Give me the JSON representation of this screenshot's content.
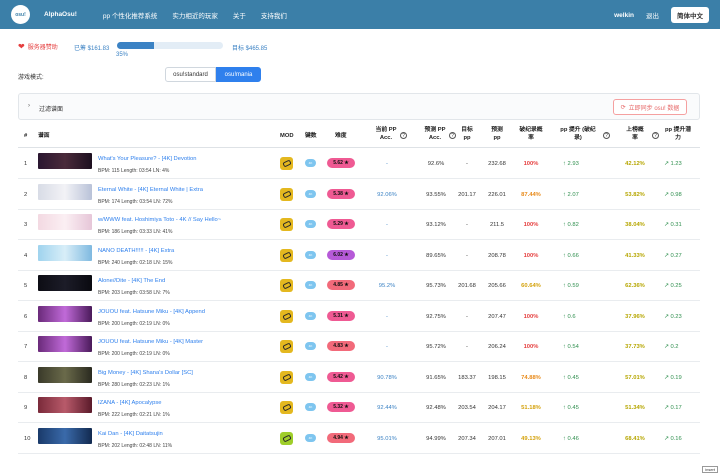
{
  "header": {
    "logo_text": "osu!",
    "brand": "AlphaOsu!",
    "nav": [
      "pp 个性化推荐系统",
      "实力相近的玩家",
      "关于",
      "支持我们"
    ],
    "username": "welkin",
    "logout": "退出",
    "language_button": "简体中文"
  },
  "support": {
    "label": "服务器赞助",
    "raised": "已筹 $161.83",
    "progress_percent": 35,
    "progress_text": "35%",
    "goal": "目标 $465.85"
  },
  "mode": {
    "label": "游戏模式:",
    "options": [
      "osu!standard",
      "osu!mania"
    ],
    "selected": "osu!mania"
  },
  "filter": {
    "label": "过滤谱面",
    "sync_button": "立即同步 osu! 数据"
  },
  "table": {
    "headers": {
      "index": "#",
      "beatmap": "谱面",
      "mod": "MOD",
      "keys": "键数",
      "difficulty": "难度",
      "current_pp_acc_1": "当前 PP",
      "current_pp_acc_2": "Acc.",
      "predicted_pp_acc_1": "预测 PP",
      "predicted_pp_acc_2": "Acc.",
      "target_pp_1": "目标",
      "target_pp_2": "pp",
      "predicted_pp_1": "预测",
      "predicted_pp_2": "pp",
      "break_rate_1": "破纪录概",
      "break_rate_2": "率",
      "pp_gain_1": "pp 提升 (破纪",
      "pp_gain_2": "录)",
      "rank_prob_1": "上榜概",
      "rank_prob_2": "率",
      "potential_1": "pp 提升潜",
      "potential_2": "力"
    },
    "rows": [
      {
        "index": "1",
        "title": "What's Your Pleasure? - [4K] Devotion",
        "meta": "BPM: 115   Length: 03:54   LN: 4%",
        "mod": "HD",
        "stars": "5.62 ★",
        "star_color": "#ef5a93",
        "current_acc": "-",
        "predicted_acc": "92.6%",
        "target_pp": "-",
        "predicted_pp": "232.68",
        "break_rate": "100%",
        "rate_color": "#e53e3e",
        "pp_gain": "↑ 2.93",
        "rank_prob": "42.12%",
        "prob_color": "#b6a600",
        "potential": "↗ 1.23",
        "thumb": "linear-gradient(90deg,#2a1630,#4a2a3a,#1d1020)"
      },
      {
        "index": "2",
        "title": "Eternal White - [4K] Eternal White | Extra",
        "meta": "BPM: 174   Length: 03:54   LN: 72%",
        "mod": "HD",
        "stars": "5.38 ★",
        "star_color": "#ef5a93",
        "current_acc": "92.06%",
        "predicted_acc": "93.55%",
        "target_pp": "201.17",
        "predicted_pp": "226.01",
        "break_rate": "87.44%",
        "rate_color": "#e88a1a",
        "pp_gain": "↑ 2.07",
        "rank_prob": "53.82%",
        "prob_color": "#b6a600",
        "potential": "↗ 0.98",
        "thumb": "linear-gradient(90deg,#d8dce6,#f2f2f6,#b9c2d8)"
      },
      {
        "index": "3",
        "title": "w/WWW feat. Hoshimiya Toto - 4K // Say Hello~",
        "meta": "BPM: 186   Length: 03:33   LN: 41%",
        "mod": "HD",
        "stars": "5.29 ★",
        "star_color": "#ef5a93",
        "current_acc": "-",
        "predicted_acc": "93.12%",
        "target_pp": "-",
        "predicted_pp": "211.5",
        "break_rate": "100%",
        "rate_color": "#e53e3e",
        "pp_gain": "↑ 0.82",
        "rank_prob": "38.04%",
        "prob_color": "#b6a600",
        "potential": "↗ 0.31",
        "thumb": "linear-gradient(90deg,#f3d9e2,#fbeff3,#e6c6d8)"
      },
      {
        "index": "4",
        "title": "NANO DEATH!!!!! - [4K] Extra",
        "meta": "BPM: 240   Length: 02:18   LN: 15%",
        "mod": "HD",
        "stars": "6.02 ★",
        "star_color": "#b65ad8",
        "current_acc": "-",
        "predicted_acc": "89.65%",
        "target_pp": "-",
        "predicted_pp": "208.78",
        "break_rate": "100%",
        "rate_color": "#e53e3e",
        "pp_gain": "↑ 0.66",
        "rank_prob": "41.33%",
        "prob_color": "#b6a600",
        "potential": "↗ 0.27",
        "thumb": "linear-gradient(90deg,#9fd3ee,#d8eef8,#7fb9e0)"
      },
      {
        "index": "5",
        "title": "Alone//Dite - [4K] The End",
        "meta": "BPM: 203   Length: 03:58   LN: 7%",
        "mod": "HD",
        "stars": "4.85 ★",
        "star_color": "#f26a7a",
        "current_acc": "95.2%",
        "predicted_acc": "95.73%",
        "target_pp": "201.68",
        "predicted_pp": "205.66",
        "break_rate": "60.64%",
        "rate_color": "#d4a10a",
        "pp_gain": "↑ 0.59",
        "rank_prob": "62.36%",
        "prob_color": "#b6a600",
        "potential": "↗ 0.25",
        "thumb": "linear-gradient(90deg,#0d0d14,#1c1c28,#0a0a10)"
      },
      {
        "index": "6",
        "title": "JOUOU feat. Hatsune Miku - [4K] Append",
        "meta": "BPM: 200   Length: 02:19   LN: 0%",
        "mod": "HD",
        "stars": "5.31 ★",
        "star_color": "#ef5a93",
        "current_acc": "-",
        "predicted_acc": "92.75%",
        "target_pp": "-",
        "predicted_pp": "207.47",
        "break_rate": "100%",
        "rate_color": "#e53e3e",
        "pp_gain": "↑ 0.6",
        "rank_prob": "37.96%",
        "prob_color": "#b6a600",
        "potential": "↗ 0.23",
        "thumb": "linear-gradient(90deg,#6a2a7a,#c06ad8,#4a1a5a)"
      },
      {
        "index": "7",
        "title": "JOUOU feat. Hatsune Miku - [4K] Master",
        "meta": "BPM: 200   Length: 02:19   LN: 0%",
        "mod": "HD",
        "stars": "4.83 ★",
        "star_color": "#f26a7a",
        "current_acc": "-",
        "predicted_acc": "95.72%",
        "target_pp": "-",
        "predicted_pp": "206.24",
        "break_rate": "100%",
        "rate_color": "#e53e3e",
        "pp_gain": "↑ 0.54",
        "rank_prob": "37.73%",
        "prob_color": "#b6a600",
        "potential": "↗ 0.2",
        "thumb": "linear-gradient(90deg,#6a2a7a,#c06ad8,#4a1a5a)"
      },
      {
        "index": "8",
        "title": "Big Money - [4K] Shana's Dollar [SC]",
        "meta": "BPM: 280   Length: 02:23   LN: 1%",
        "mod": "HD",
        "stars": "5.42 ★",
        "star_color": "#ef5a93",
        "current_acc": "90.78%",
        "predicted_acc": "91.65%",
        "target_pp": "183.37",
        "predicted_pp": "198.15",
        "break_rate": "74.88%",
        "rate_color": "#e88a1a",
        "pp_gain": "↑ 0.45",
        "rank_prob": "57.01%",
        "prob_color": "#b6a600",
        "potential": "↗ 0.19",
        "thumb": "linear-gradient(90deg,#3a3a2a,#6a6a4a,#2a2a20)"
      },
      {
        "index": "9",
        "title": "IZANA - [4K] Apocalypse",
        "meta": "BPM: 222   Length: 02:21   LN: 1%",
        "mod": "HD",
        "stars": "5.32 ★",
        "star_color": "#ef5a93",
        "current_acc": "92.44%",
        "predicted_acc": "92.48%",
        "target_pp": "203.54",
        "predicted_pp": "204.17",
        "break_rate": "51.18%",
        "rate_color": "#d4a10a",
        "pp_gain": "↑ 0.45",
        "rank_prob": "51.34%",
        "prob_color": "#b6a600",
        "potential": "↗ 0.17",
        "thumb": "linear-gradient(90deg,#7a2a3a,#b85a6a,#5a1a2a)"
      },
      {
        "index": "10",
        "title": "Kai Dan - [4K] Daitatsujin",
        "meta": "BPM: 202   Length: 02:48   LN: 11%",
        "mod": "DT",
        "stars": "4.94 ★",
        "star_color": "#f26a7a",
        "current_acc": "95.01%",
        "predicted_acc": "94.99%",
        "target_pp": "207.34",
        "predicted_pp": "207.01",
        "break_rate": "49.13%",
        "rate_color": "#d4a10a",
        "pp_gain": "↑ 0.46",
        "rank_prob": "68.41%",
        "prob_color": "#b6a600",
        "potential": "↗ 0.16",
        "thumb": "linear-gradient(90deg,#1a3a6a,#3a6aaa,#122a50)"
      }
    ]
  },
  "badge": "insert"
}
